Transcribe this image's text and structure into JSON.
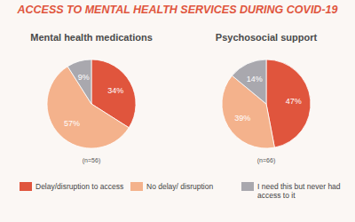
{
  "title": "ACCESS TO MENTAL HEALTH SERVICES DURING COVID-19",
  "chart_data": [
    {
      "type": "pie",
      "title": "Mental health medications",
      "categories": [
        "Delay/disruption to access",
        "No delay/ disruption",
        "I need this but never had access to it"
      ],
      "values": [
        34,
        57,
        9
      ],
      "value_labels": [
        "34%",
        "57%",
        "9%"
      ],
      "colors": [
        "#e0553d",
        "#f4b28c",
        "#a9a8ae"
      ],
      "data_labels": true,
      "annotation": "(n=56)",
      "legend": "bottom"
    },
    {
      "type": "pie",
      "title": "Psychosocial support",
      "categories": [
        "Delay/disruption to access",
        "No delay/ disruption",
        "I need this but never had access to it"
      ],
      "values": [
        47,
        39,
        14
      ],
      "value_labels": [
        "47%",
        "39%",
        "14%"
      ],
      "colors": [
        "#e0553d",
        "#f4b28c",
        "#a9a8ae"
      ],
      "data_labels": true,
      "annotation": "(n=66)"
    }
  ]
}
